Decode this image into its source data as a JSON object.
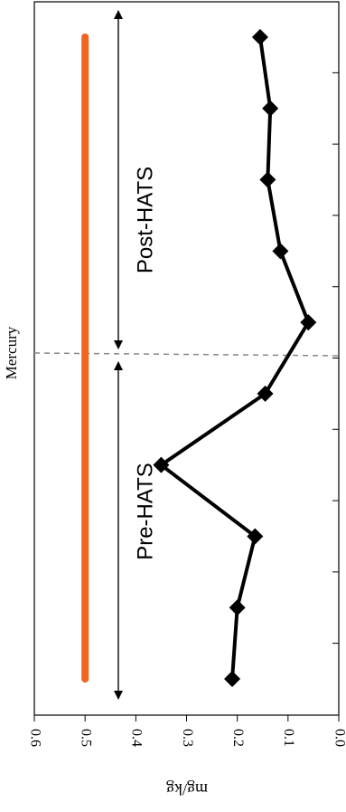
{
  "chart_data": {
    "type": "line",
    "title": "Mercury",
    "x_label": "mg/kg",
    "categories": [
      null,
      null,
      null,
      null,
      null,
      null,
      null,
      null,
      null,
      null
    ],
    "series": [
      {
        "color": "#000000",
        "values": [
          0.21,
          0.2,
          0.165,
          0.35,
          0.145,
          0.06,
          0.115,
          0.14,
          0.135,
          0.155
        ]
      },
      {
        "color": "#f26522",
        "values": [
          0.5,
          0.5,
          0.5,
          0.5,
          0.5,
          0.5,
          0.5,
          0.5,
          0.5,
          0.5
        ]
      }
    ],
    "xlim": [
      0.6,
      0.0
    ],
    "xticks": [
      0.6,
      0.5,
      0.4,
      0.3,
      0.2,
      0.1,
      {
        "value": 0,
        "label": "0.0"
      }
    ],
    "annotations": [
      "Pre-HATS",
      "Post-HATS"
    ]
  }
}
